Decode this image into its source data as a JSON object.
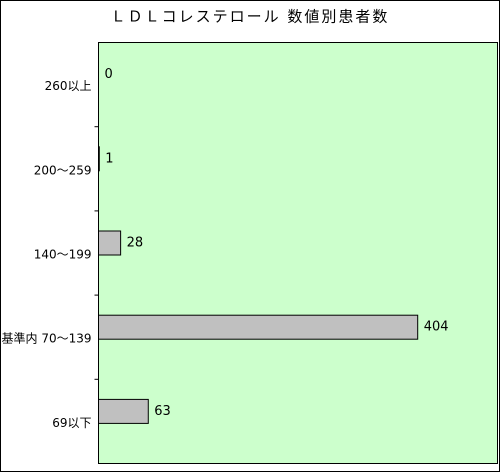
{
  "chart_data": {
    "type": "hbar",
    "title": "ＬＤＬコレステロール 数値別患者数",
    "categories": [
      "260以上",
      "200～259",
      "140～199",
      "基準内 70～139",
      "69以下"
    ],
    "values": [
      0,
      1,
      28,
      404,
      63
    ],
    "color": "#c0c0c0",
    "xlim": [
      0,
      505
    ]
  }
}
